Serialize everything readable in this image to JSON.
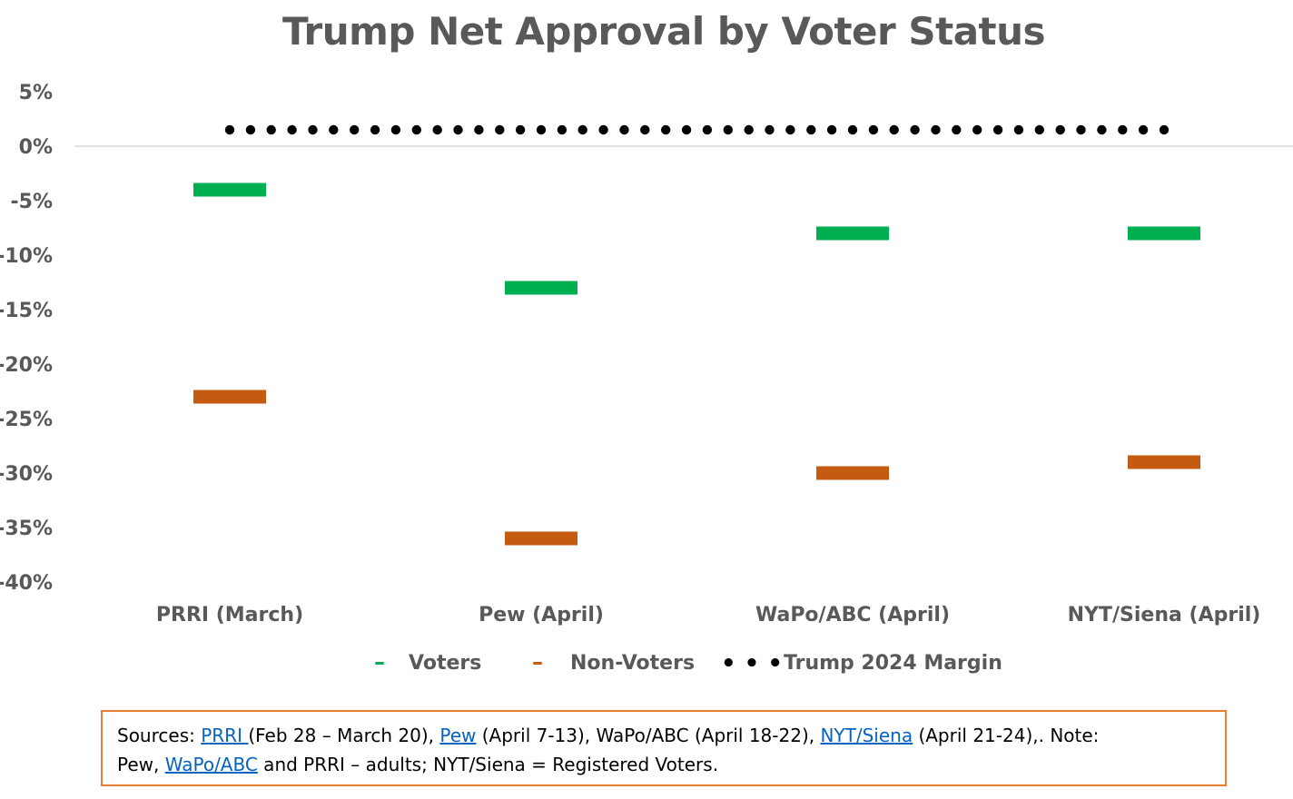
{
  "chart_data": {
    "type": "scatter",
    "title": "Trump Net Approval by Voter Status",
    "categories": [
      "PRRI (March)",
      "Pew (April)",
      "WaPo/ABC (April)",
      "NYT/Siena (April)"
    ],
    "series": [
      {
        "name": "Voters",
        "values": [
          -4,
          -13,
          -8,
          -8
        ],
        "color": "#00B050",
        "marker": "dash"
      },
      {
        "name": "Non-Voters",
        "values": [
          -23,
          -36,
          -30,
          -29
        ],
        "color": "#C55A11",
        "marker": "dash"
      },
      {
        "name": "Trump 2024 Margin",
        "values": [
          1.5,
          1.5,
          1.5,
          1.5
        ],
        "color": "#000000",
        "marker": "dotted-line"
      }
    ],
    "ylim": [
      -40,
      5
    ],
    "yticks": [
      5,
      0,
      -5,
      -10,
      -15,
      -20,
      -25,
      -30,
      -35,
      -40
    ],
    "ytick_labels": [
      "5%",
      "0%",
      "-5%",
      "-10%",
      "-15%",
      "-20%",
      "-25%",
      "-30%",
      "-35%",
      "-40%"
    ],
    "grid": false,
    "zero_line": true,
    "legend_position": "bottom"
  },
  "legend": {
    "voters_symbol": "–",
    "nonvoters_symbol": "–",
    "margin_symbol": "• • •"
  },
  "sources": {
    "prefix": "Sources: ",
    "prri_link": "PRRI ",
    "after_prri": "(Feb 28 – March 20), ",
    "pew_link": "Pew",
    "after_pew": " (April 7-13), WaPo/ABC (April 18-22), ",
    "nyt_link": "NYT/Siena",
    "after_nyt": " (April 21-24),. Note:",
    "line2_prefix": "Pew, ",
    "wapo_link": "WaPo/ABC",
    "line2_suffix": " and PRRI – adults; NYT/Siena = Registered Voters."
  }
}
